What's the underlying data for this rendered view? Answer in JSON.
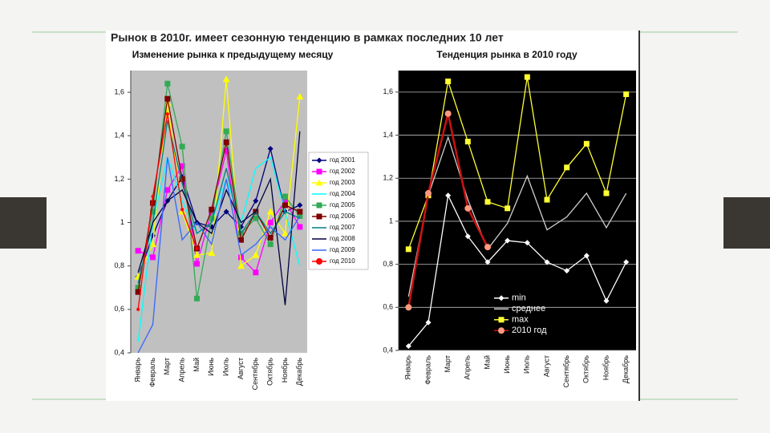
{
  "title": "Рынок в 2010г. имеет сезонную тенденцию в рамках последних 10 лет",
  "chart_data": [
    {
      "type": "line",
      "title": "Изменение рынка к предыдущему месяцу",
      "categories": [
        "Январь",
        "Февраль",
        "Март",
        "Апрель",
        "Май",
        "Июнь",
        "Июль",
        "Август",
        "Сентябрь",
        "Октябрь",
        "Ноябрь",
        "Декабрь"
      ],
      "ylim": [
        0.4,
        1.7
      ],
      "yticks": [
        {
          "value": 0.4,
          "label": "0,4"
        },
        {
          "value": 0.6,
          "label": "0,6"
        },
        {
          "value": 0.8,
          "label": "0,8"
        },
        {
          "value": 1,
          "label": "1"
        },
        {
          "value": 1.2,
          "label": "1,2"
        },
        {
          "value": 1.4,
          "label": "1,4"
        },
        {
          "value": 1.6,
          "label": "1,6"
        }
      ],
      "grid": false,
      "background": "#c0c0c0",
      "legend": "right",
      "series": [
        {
          "name": "год 2001",
          "color": "#000080",
          "marker": "diamond",
          "values": [
            0.75,
            0.94,
            1.1,
            1.21,
            1.0,
            0.98,
            1.05,
            0.98,
            1.1,
            1.34,
            1.05,
            1.08
          ]
        },
        {
          "name": "год 2002",
          "color": "#ff00ff",
          "marker": "square",
          "values": [
            0.87,
            0.84,
            1.15,
            1.26,
            0.81,
            1.05,
            1.33,
            0.84,
            0.77,
            1.0,
            1.1,
            0.98
          ]
        },
        {
          "name": "год 2003",
          "color": "#ffff00",
          "marker": "triangle",
          "values": [
            0.75,
            0.9,
            1.55,
            1.05,
            0.85,
            0.86,
            1.66,
            0.8,
            0.85,
            1.05,
            0.95,
            1.58
          ]
        },
        {
          "name": "год 2004",
          "color": "#00ffff",
          "marker": "none",
          "values": [
            0.45,
            1.0,
            1.3,
            1.1,
            0.95,
            1.0,
            1.2,
            1.0,
            1.25,
            1.3,
            1.05,
            0.8
          ]
        },
        {
          "name": "год 2005",
          "color": "#33aa55",
          "marker": "square",
          "values": [
            0.7,
            1.05,
            1.64,
            1.35,
            0.65,
            1.02,
            1.42,
            0.95,
            1.02,
            0.9,
            1.12,
            1.03
          ]
        },
        {
          "name": "год 2006",
          "color": "#800000",
          "marker": "square",
          "values": [
            0.68,
            1.09,
            1.57,
            1.2,
            0.88,
            1.06,
            1.37,
            0.92,
            1.05,
            0.93,
            1.08,
            1.05
          ]
        },
        {
          "name": "год 2007",
          "color": "#008080",
          "marker": "none",
          "values": [
            0.72,
            1.0,
            1.47,
            1.18,
            0.95,
            1.0,
            1.25,
            0.95,
            1.05,
            0.95,
            1.05,
            1.02
          ]
        },
        {
          "name": "год 2008",
          "color": "#000040",
          "marker": "none",
          "values": [
            0.77,
            1.0,
            1.1,
            1.15,
            1.0,
            0.95,
            1.15,
            1.0,
            1.05,
            1.2,
            0.62,
            1.42
          ]
        },
        {
          "name": "год 2009",
          "color": "#3366ff",
          "marker": "none",
          "values": [
            0.4,
            0.53,
            1.3,
            0.92,
            1.0,
            0.9,
            1.2,
            0.85,
            0.9,
            0.98,
            0.92,
            1.03
          ]
        },
        {
          "name": "год 2010",
          "color": "#ff0000",
          "marker": "circle",
          "values": [
            0.6,
            1.12,
            1.5,
            1.06,
            0.88,
            null,
            null,
            null,
            null,
            null,
            null,
            null
          ]
        }
      ]
    },
    {
      "type": "line",
      "title": "Тенденция рынка в 2010 году",
      "categories": [
        "Январь",
        "Февраль",
        "Март",
        "Апрель",
        "Май",
        "Июнь",
        "Июль",
        "Август",
        "Сентябрь",
        "Октябрь",
        "Ноябрь",
        "Декабрь"
      ],
      "ylim": [
        0.4,
        1.7
      ],
      "yticks": [
        {
          "value": 0.4,
          "label": "0,4"
        },
        {
          "value": 0.6,
          "label": "0,6"
        },
        {
          "value": 0.8,
          "label": "0,8"
        },
        {
          "value": 1,
          "label": "1"
        },
        {
          "value": 1.2,
          "label": "1,2"
        },
        {
          "value": 1.4,
          "label": "1,4"
        },
        {
          "value": 1.6,
          "label": "1,6"
        }
      ],
      "grid": true,
      "background": "#000000",
      "legend": "bottom",
      "series": [
        {
          "name": "min",
          "color": "#ffffff",
          "marker": "diamond",
          "values": [
            0.42,
            0.53,
            1.12,
            0.93,
            0.81,
            0.91,
            0.9,
            0.81,
            0.77,
            0.84,
            0.63,
            0.81
          ]
        },
        {
          "name": "среднее",
          "color": "#d0d0d0",
          "marker": "none",
          "values": [
            0.65,
            1.12,
            1.39,
            1.1,
            0.87,
            0.99,
            1.21,
            0.96,
            1.02,
            1.13,
            0.97,
            1.13
          ]
        },
        {
          "name": "max",
          "color": "#ffff33",
          "marker": "square",
          "values": [
            0.87,
            1.12,
            1.65,
            1.37,
            1.09,
            1.06,
            1.67,
            1.1,
            1.25,
            1.36,
            1.13,
            1.59
          ]
        },
        {
          "name": "2010 год",
          "color": "#cc1111",
          "marker": "circle",
          "values": [
            0.6,
            1.13,
            1.5,
            1.06,
            0.88,
            null,
            null,
            null,
            null,
            null,
            null,
            null
          ]
        }
      ]
    }
  ]
}
